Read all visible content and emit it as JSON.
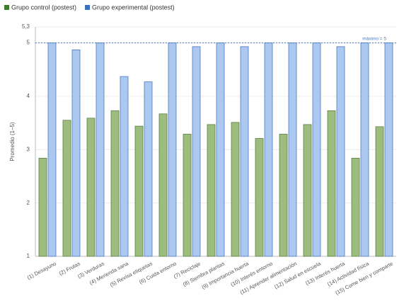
{
  "chart_data": {
    "type": "bar",
    "ylabel": "Promedio (1–5)",
    "categories": [
      "(1) Desayuno",
      "(2) Frutas",
      "(3) Verduras",
      "(4) Merienda sana",
      "(5) Revisa etiquetas",
      "(6) Cuida entorno",
      "(7) Reciclaje",
      "(8) Siembra plantas",
      "(9) Importancia huerta",
      "(10) Interés entorno",
      "(11) Aprender alimentación",
      "(12) Salud en escuela",
      "(13) Interés huerta",
      "(14) Actividad física",
      "(15) Come bien y comparte"
    ],
    "series": [
      {
        "name": "Grupo control (postest)",
        "color": "#9cbd7e",
        "values": [
          2.84,
          3.55,
          3.59,
          3.73,
          3.44,
          3.67,
          3.29,
          3.47,
          3.51,
          3.21,
          3.29,
          3.47,
          3.73,
          2.84,
          3.43
        ]
      },
      {
        "name": "Grupo experimental (postest)",
        "color": "#adc8ee",
        "values": [
          5,
          4.87,
          5,
          4.37,
          4.27,
          5,
          4.93,
          5,
          4.93,
          5,
          5,
          5,
          4.93,
          5,
          5
        ]
      }
    ],
    "ylim": [
      1,
      5.3
    ],
    "yticks": [
      1,
      2,
      3,
      4,
      5,
      {
        "value": 5.3,
        "label": "5,3"
      }
    ],
    "grid": true,
    "legend": "top-left",
    "reference_line": {
      "value": 5,
      "label": "máximo = 5"
    }
  }
}
